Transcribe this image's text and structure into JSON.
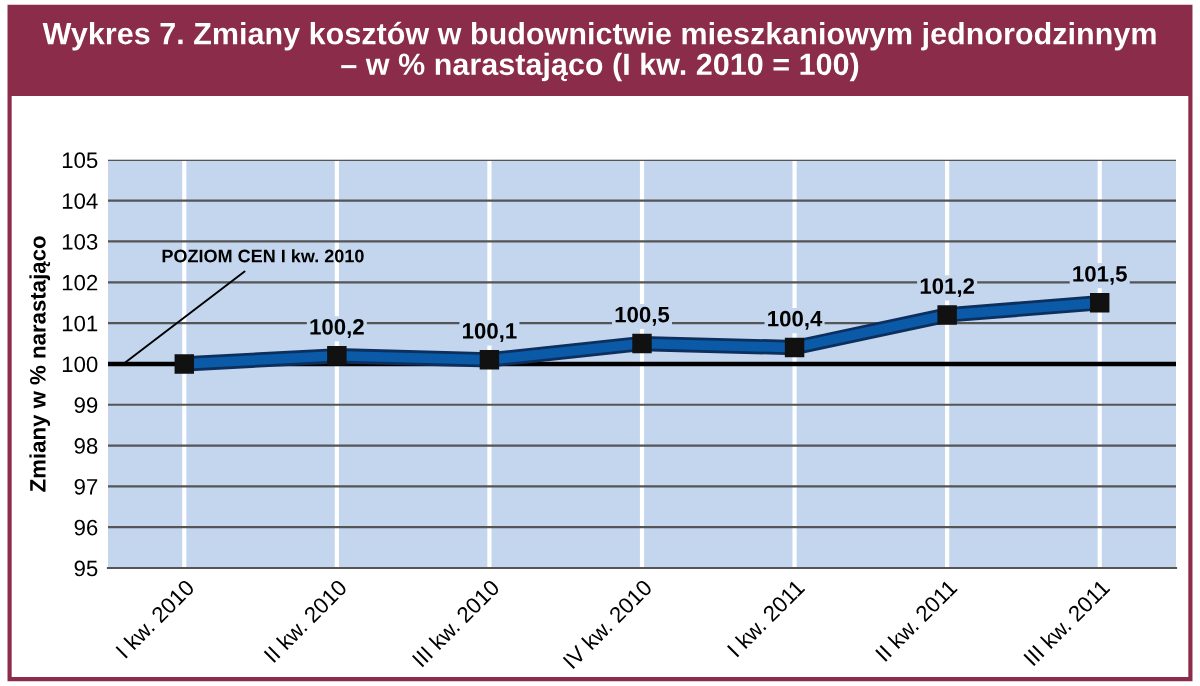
{
  "chart_data": {
    "type": "line",
    "title": "Wykres 7. Zmiany kosztów w budownictwie mieszkaniowym jednorodzinnym\n– w % narastająco (I kw. 2010 = 100)",
    "ylabel": "Zmiany w % narastająco",
    "categories": [
      "I kw. 2010",
      "II kw. 2010",
      "III kw. 2010",
      "IV kw. 2010",
      "I kw. 2011",
      "II kw. 2011",
      "III kw. 2011"
    ],
    "series": [
      {
        "color": "#0b5aa8",
        "values": [
          100,
          100.2,
          100.1,
          100.5,
          100.4,
          101.2,
          101.5
        ],
        "value_labels": [
          null,
          "100,2",
          "100,1",
          "100,5",
          "100,4",
          "101,2",
          "101,5"
        ]
      }
    ],
    "ylim": [
      95,
      105
    ],
    "yticks": [
      95,
      96,
      97,
      98,
      99,
      100,
      101,
      102,
      103,
      104,
      105
    ],
    "grid": true,
    "marker": "square",
    "line_style": "solid",
    "ref_lines": [
      {
        "axis": "y",
        "value": 100,
        "label": "POZIOM CEN I kw. 2010",
        "color": "#000000"
      }
    ]
  }
}
